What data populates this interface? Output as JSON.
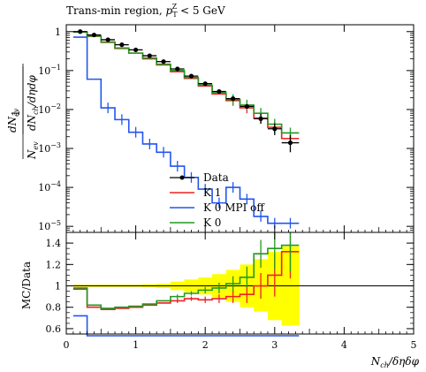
{
  "chart_data": [
    {
      "type": "line",
      "title": "Trans-min region, p_T^Z < 5 GeV",
      "title_parts": {
        "text": "Trans-min region, ",
        "var": "p",
        "sub": "T",
        "sup": "Z",
        "cut": " < 5 GeV"
      },
      "ylabel": "1/N_ev dN_ev/dN_ch/dηdφ",
      "ylabel_parts": {
        "one": "1",
        "den": "N",
        "den_sub": "ev",
        "num": "dN",
        "num_sub": "ev",
        "den2": "dN",
        "den2_sub": "ch",
        "den2_tail": "/dηdφ"
      },
      "yscale": "log",
      "ylim": [
        7e-06,
        1.5
      ],
      "xlim": [
        0,
        5
      ],
      "yticks": [
        {
          "v": 1,
          "b": "1",
          "e": ""
        },
        {
          "v": 0.1,
          "b": "10",
          "e": "−1"
        },
        {
          "v": 0.01,
          "b": "10",
          "e": "−2"
        },
        {
          "v": 0.001,
          "b": "10",
          "e": "−3"
        },
        {
          "v": 0.0001,
          "b": "10",
          "e": "−4"
        },
        {
          "v": 1e-05,
          "b": "10",
          "e": "−5"
        }
      ],
      "bin_edges": [
        0.1,
        0.3,
        0.5,
        0.7,
        0.9,
        1.1,
        1.3,
        1.5,
        1.7,
        1.9,
        2.1,
        2.3,
        2.5,
        2.7,
        2.9,
        3.1,
        3.35
      ],
      "legend_position": "middle-right",
      "series": [
        {
          "name": "Data",
          "style": "points",
          "color": "#000000",
          "x": [
            0.2,
            0.4,
            0.6,
            0.8,
            1.0,
            1.2,
            1.4,
            1.6,
            1.8,
            2.0,
            2.2,
            2.4,
            2.6,
            2.8,
            3.0,
            3.225
          ],
          "y": [
            1.0,
            0.82,
            0.62,
            0.46,
            0.34,
            0.24,
            0.17,
            0.11,
            0.072,
            0.046,
            0.029,
            0.019,
            0.012,
            0.0058,
            0.0032,
            0.0014
          ],
          "yerr_lo": [
            0,
            0,
            0,
            0,
            0,
            0,
            0,
            0,
            0,
            0,
            0.0015,
            0.0012,
            0.0012,
            0.0015,
            0.001,
            0.0006
          ],
          "yerr_hi": [
            0,
            0,
            0,
            0,
            0,
            0,
            0,
            0,
            0,
            0,
            0.0015,
            0.0012,
            0.0015,
            0.002,
            0.0012,
            0.0008
          ]
        },
        {
          "name": "K 1",
          "style": "hist",
          "color": "#ee2222",
          "y": [
            0.97,
            0.76,
            0.53,
            0.37,
            0.28,
            0.2,
            0.14,
            0.094,
            0.063,
            0.04,
            0.025,
            0.017,
            0.011,
            0.006,
            0.0035,
            0.0018
          ]
        },
        {
          "name": "K 0 MPI off",
          "style": "hist",
          "color": "#2255ee",
          "y": [
            0.72,
            0.06,
            0.011,
            0.0055,
            0.0026,
            0.0013,
            0.0008,
            0.00035,
            0.00018,
            9e-05,
            4e-05,
            0.0001,
            5e-05,
            1.8e-05,
            1.2e-05,
            1.2e-05
          ]
        },
        {
          "name": "K 0",
          "style": "hist",
          "color": "#229922",
          "y": [
            0.98,
            0.77,
            0.54,
            0.38,
            0.28,
            0.21,
            0.145,
            0.1,
            0.066,
            0.042,
            0.027,
            0.018,
            0.013,
            0.008,
            0.0042,
            0.0025
          ]
        }
      ]
    },
    {
      "type": "line",
      "ylabel": "MC/Data",
      "xlabel": "N_ch/δηδφ",
      "xlabel_parts": {
        "var": "N",
        "sub": "ch",
        "tail": "/δηδφ"
      },
      "ylim": [
        0.55,
        1.5
      ],
      "xlim": [
        0,
        5
      ],
      "yticks": [
        0.6,
        0.8,
        1,
        1.2,
        1.4
      ],
      "xticks": [
        0,
        1,
        2,
        3,
        4,
        5
      ],
      "band_color": "#ffff00",
      "band": {
        "lo": [
          0.99,
          0.99,
          0.99,
          0.99,
          0.99,
          0.985,
          0.98,
          0.96,
          0.94,
          0.92,
          0.89,
          0.85,
          0.8,
          0.76,
          0.68,
          0.63
        ],
        "hi": [
          1.01,
          1.01,
          1.01,
          1.01,
          1.01,
          1.015,
          1.02,
          1.04,
          1.06,
          1.08,
          1.11,
          1.15,
          1.2,
          1.25,
          1.32,
          1.37
        ]
      },
      "ratios": [
        {
          "name": "K 1",
          "color": "#ee2222",
          "y": [
            0.97,
            0.8,
            0.78,
            0.79,
            0.8,
            0.82,
            0.84,
            0.86,
            0.88,
            0.87,
            0.88,
            0.9,
            0.92,
            1.0,
            1.1,
            1.32
          ],
          "err": [
            0.01,
            0.01,
            0.01,
            0.01,
            0.01,
            0.01,
            0.01,
            0.02,
            0.02,
            0.03,
            0.04,
            0.06,
            0.08,
            0.12,
            0.2,
            0.25
          ]
        },
        {
          "name": "K 0 MPI off",
          "color": "#2255ee",
          "y": [
            0.72,
            0.0,
            0.0,
            0.0,
            0.0,
            0.0,
            0.0,
            0.0,
            0.0,
            0.0,
            0.0,
            0.0,
            0.0,
            0.0,
            0.0,
            0.0
          ],
          "err": [
            0.01,
            0,
            0,
            0,
            0,
            0,
            0,
            0,
            0,
            0,
            0,
            0,
            0,
            0,
            0,
            0
          ]
        },
        {
          "name": "K 0",
          "color": "#229922",
          "y": [
            0.98,
            0.82,
            0.79,
            0.8,
            0.81,
            0.83,
            0.86,
            0.9,
            0.93,
            0.96,
            0.98,
            1.02,
            1.08,
            1.3,
            1.35,
            1.38
          ],
          "err": [
            0.01,
            0.01,
            0.01,
            0.01,
            0.01,
            0.01,
            0.01,
            0.02,
            0.02,
            0.03,
            0.05,
            0.07,
            0.1,
            0.13,
            0.2,
            0.25
          ]
        }
      ]
    }
  ]
}
